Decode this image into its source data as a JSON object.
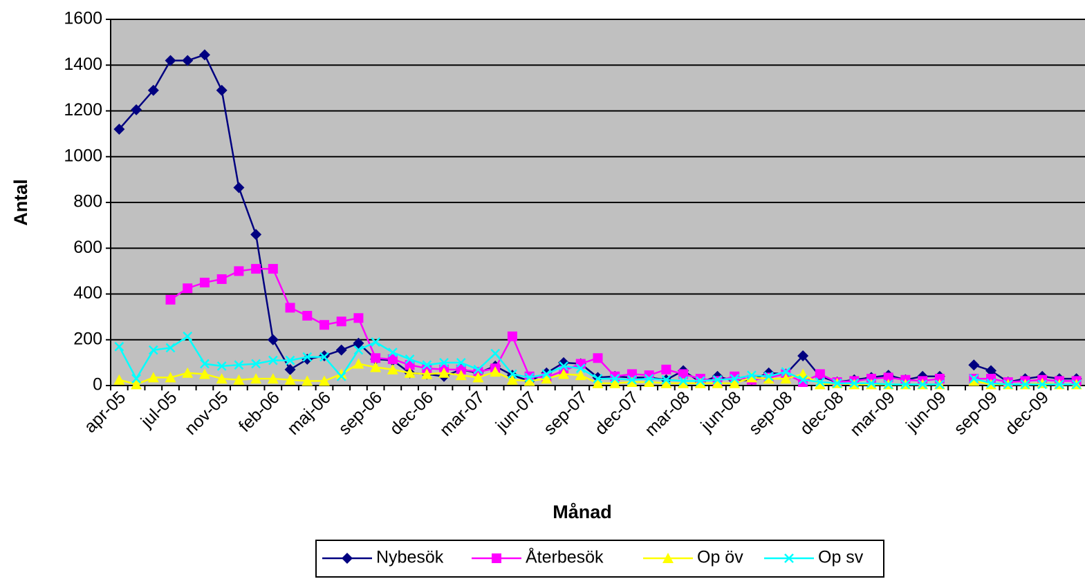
{
  "chart_data": {
    "type": "line",
    "x_label": "Månad",
    "y_label": "Antal",
    "categories": [
      "apr-05",
      null,
      null,
      "jul-05",
      null,
      null,
      "nov-05",
      null,
      null,
      "feb-06",
      null,
      null,
      "maj-06",
      null,
      null,
      "sep-06",
      null,
      null,
      "dec-06",
      null,
      null,
      "mar-07",
      null,
      null,
      "jun-07",
      null,
      null,
      "sep-07",
      null,
      null,
      "dec-07",
      null,
      null,
      "mar-08",
      null,
      null,
      "jun-08",
      null,
      null,
      "sep-08",
      null,
      null,
      "dec-08",
      null,
      null,
      "mar-09",
      null,
      null,
      "jun-09",
      null,
      null,
      "sep-09",
      null,
      null,
      "dec-09",
      null,
      null
    ],
    "series": [
      {
        "name": "Nybesök",
        "color": "#000080",
        "marker": "diamond",
        "values": [
          1120,
          1205,
          1290,
          1420,
          1420,
          1445,
          1290,
          865,
          660,
          200,
          70,
          115,
          130,
          155,
          185,
          115,
          110,
          55,
          50,
          40,
          70,
          55,
          85,
          45,
          20,
          55,
          100,
          95,
          35,
          40,
          35,
          35,
          25,
          65,
          15,
          40,
          20,
          25,
          55,
          50,
          130,
          40,
          15,
          25,
          35,
          45,
          25,
          40,
          40,
          null,
          90,
          65,
          15,
          30,
          40,
          30,
          30
        ]
      },
      {
        "name": "Återbesök",
        "color": "#ff00ff",
        "marker": "square",
        "values": [
          null,
          null,
          null,
          375,
          425,
          450,
          465,
          500,
          510,
          510,
          340,
          305,
          265,
          280,
          295,
          120,
          115,
          90,
          75,
          70,
          70,
          60,
          75,
          215,
          40,
          35,
          65,
          95,
          120,
          40,
          50,
          45,
          70,
          50,
          30,
          20,
          40,
          25,
          35,
          50,
          15,
          50,
          15,
          20,
          30,
          35,
          25,
          20,
          30,
          null,
          30,
          30,
          15,
          20,
          25,
          20,
          20
        ]
      },
      {
        "name": "Op öv",
        "color": "#ffff00",
        "marker": "triangle",
        "values": [
          25,
          5,
          35,
          35,
          55,
          50,
          30,
          25,
          30,
          30,
          25,
          20,
          20,
          50,
          95,
          80,
          70,
          55,
          50,
          55,
          45,
          35,
          60,
          25,
          20,
          30,
          50,
          45,
          10,
          10,
          15,
          15,
          10,
          10,
          10,
          10,
          10,
          35,
          30,
          30,
          50,
          5,
          10,
          5,
          5,
          5,
          5,
          5,
          5,
          null,
          20,
          5,
          5,
          5,
          10,
          5,
          5
        ]
      },
      {
        "name": "Op sv",
        "color": "#00ffff",
        "marker": "x",
        "values": [
          170,
          30,
          155,
          165,
          215,
          95,
          85,
          90,
          95,
          110,
          110,
          125,
          125,
          40,
          155,
          190,
          145,
          115,
          90,
          100,
          100,
          70,
          140,
          50,
          35,
          50,
          85,
          75,
          30,
          30,
          25,
          30,
          25,
          20,
          20,
          25,
          30,
          45,
          40,
          60,
          25,
          15,
          10,
          10,
          10,
          5,
          5,
          5,
          5,
          null,
          30,
          10,
          5,
          5,
          5,
          5,
          5
        ]
      }
    ],
    "ylim": [
      0,
      1600
    ],
    "yticks": [
      0,
      200,
      400,
      600,
      800,
      1000,
      1200,
      1400,
      1600
    ],
    "grid": true,
    "plot_background": "#c0c0c0",
    "legend": "bottom"
  }
}
